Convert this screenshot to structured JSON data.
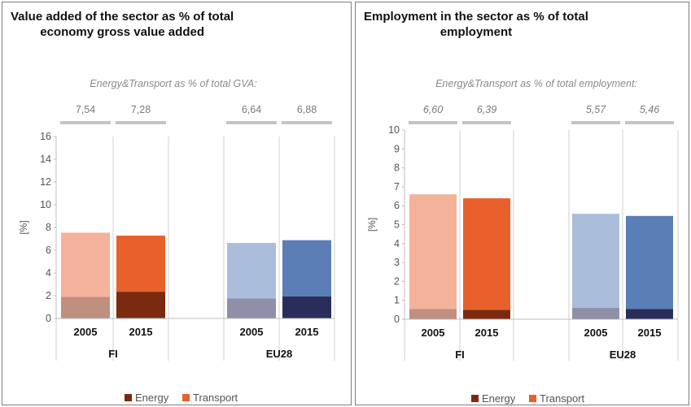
{
  "chart_data": [
    {
      "type": "bar",
      "stacked": true,
      "title_line1": "Value added of the sector as % of total",
      "title_line2": "economy gross value added",
      "subtitle": "Energy&Transport as % of total GVA:",
      "ylabel": "[%]",
      "ylim": [
        0,
        16
      ],
      "ytick_labels": [
        "0",
        "2",
        "4",
        "6",
        "8",
        "10",
        "12",
        "14",
        "16"
      ],
      "groups": [
        "FI",
        "EU28"
      ],
      "categories": [
        "2005",
        "2015",
        "2005",
        "2015"
      ],
      "totals_labels": [
        "7,54",
        "7,28",
        "6,64",
        "6,88"
      ],
      "series": [
        {
          "name": "Energy",
          "values": [
            1.9,
            2.35,
            1.75,
            1.95
          ]
        },
        {
          "name": "Transport",
          "values": [
            5.64,
            4.93,
            4.89,
            4.93
          ]
        }
      ],
      "legend_position": "bottom",
      "colors": {
        "energy": [
          "#bf8f80",
          "#7b2a10",
          "#8f8fa8",
          "#2a2d5a"
        ],
        "transport": [
          "#f4b29b",
          "#e8602c",
          "#aabedc",
          "#5a7eb5"
        ]
      }
    },
    {
      "type": "bar",
      "stacked": true,
      "title_line1": "Employment in the sector as % of total",
      "title_line2": "employment",
      "subtitle": "Energy&Transport as % of total employment:",
      "ylabel": "[%]",
      "ylim": [
        0,
        10
      ],
      "ytick_labels": [
        "0",
        "1",
        "2",
        "3",
        "4",
        "5",
        "6",
        "7",
        "8",
        "9",
        "10"
      ],
      "groups": [
        "FI",
        "EU28"
      ],
      "categories": [
        "2005",
        "2015",
        "2005",
        "2015"
      ],
      "totals_labels": [
        "6,60",
        "6,39",
        "5,57",
        "5,46"
      ],
      "series": [
        {
          "name": "Energy",
          "values": [
            0.55,
            0.5,
            0.6,
            0.55
          ]
        },
        {
          "name": "Transport",
          "values": [
            6.05,
            5.89,
            4.97,
            4.91
          ]
        }
      ],
      "legend_position": "bottom",
      "colors": {
        "energy": [
          "#bf8f80",
          "#7b2a10",
          "#8f8fa8",
          "#2a2d5a"
        ],
        "transport": [
          "#f4b29b",
          "#e8602c",
          "#aabedc",
          "#5a7eb5"
        ]
      }
    }
  ]
}
